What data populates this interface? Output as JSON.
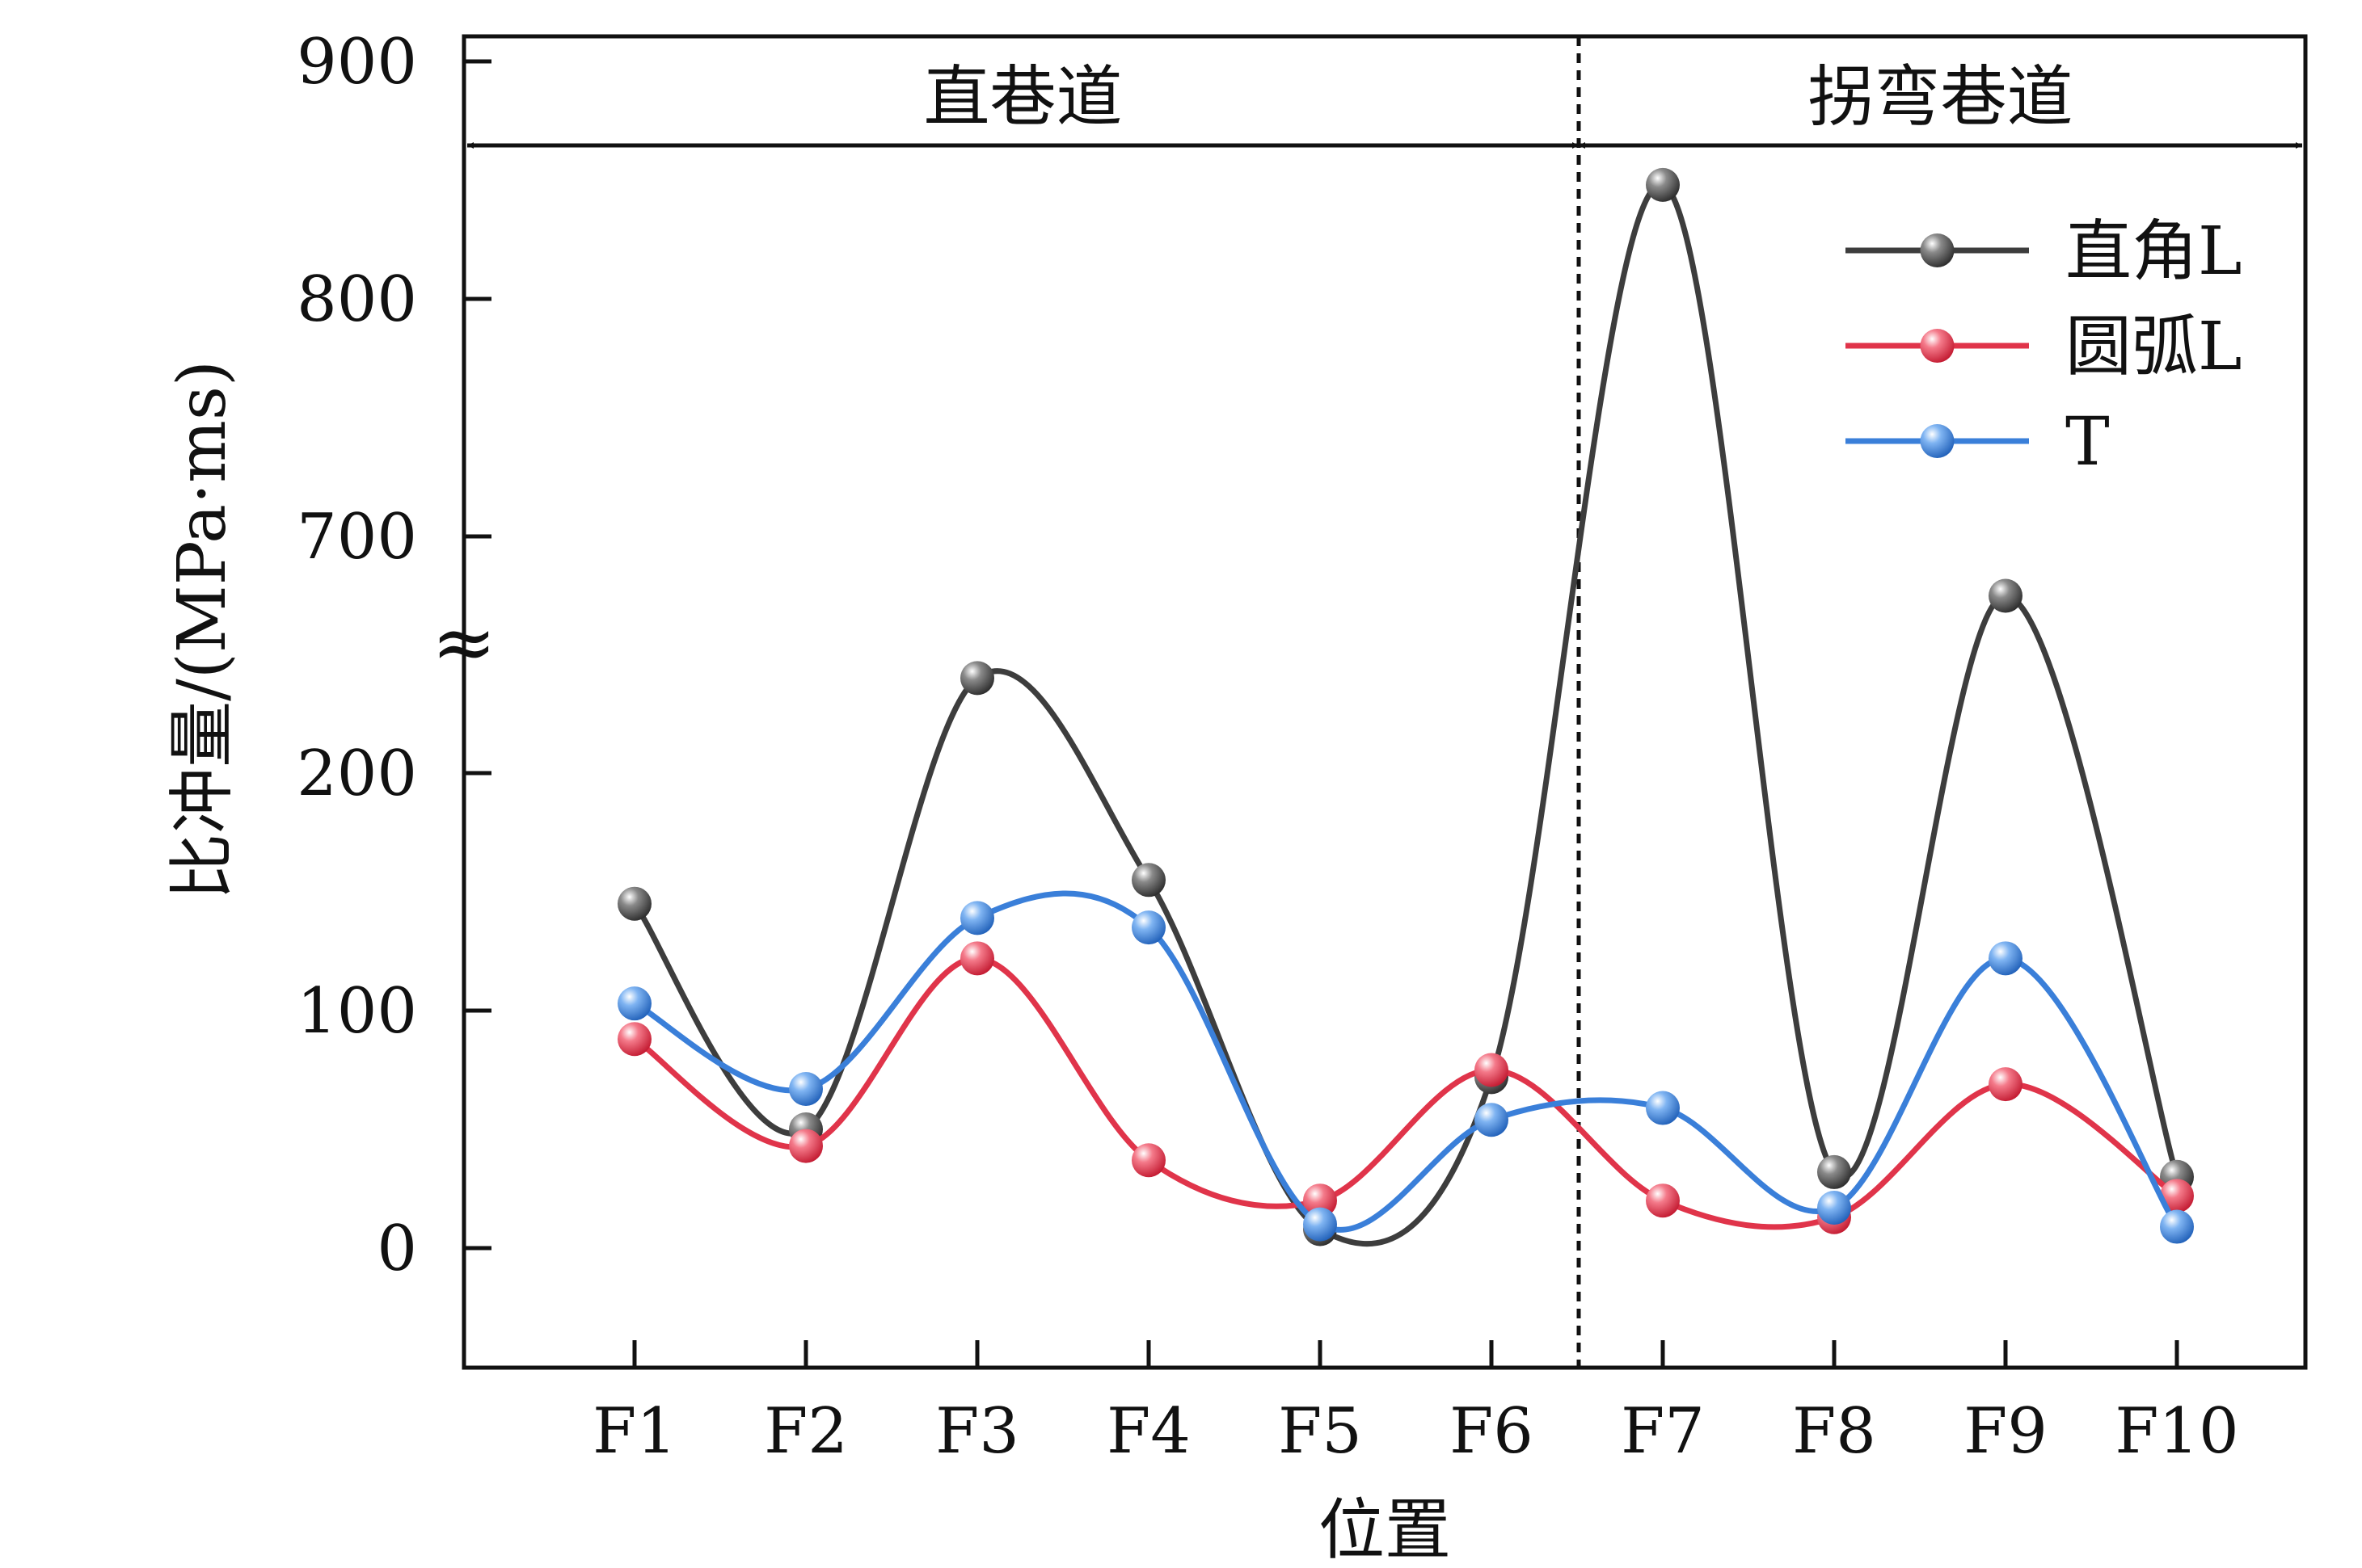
{
  "chart_data": {
    "type": "line",
    "xlabel": "位置",
    "ylabel": "比冲量/(MPa·ms)",
    "categories": [
      "F1",
      "F2",
      "F3",
      "F4",
      "F5",
      "F6",
      "F7",
      "F8",
      "F9",
      "F10"
    ],
    "y_ticks": [
      "0",
      "100",
      "200",
      "700",
      "800",
      "900"
    ],
    "y_break_symbol": "≈",
    "y_axis_segments": [
      {
        "data_range": [
          -50,
          250
        ]
      },
      {
        "data_range": [
          650,
          900
        ]
      }
    ],
    "regions": [
      {
        "label": "直巷道",
        "from": "F1",
        "to": "F6"
      },
      {
        "label": "拐弯巷道",
        "from": "F7",
        "to": "F10"
      }
    ],
    "region_divider_after": "F6",
    "legend_position": "top-right",
    "grid": false,
    "series": [
      {
        "name": "直角L",
        "color": "#3d3d3d",
        "values": [
          145,
          50,
          240,
          155,
          8,
          72,
          848,
          32,
          675,
          30
        ]
      },
      {
        "name": "圆弧L",
        "color": "#e0344a",
        "values": [
          88,
          43,
          122,
          37,
          20,
          75,
          20,
          13,
          69,
          22
        ]
      },
      {
        "name": "T",
        "color": "#3a7fd9",
        "values": [
          103,
          67,
          139,
          135,
          10,
          54,
          59,
          17,
          122,
          9
        ]
      }
    ]
  }
}
